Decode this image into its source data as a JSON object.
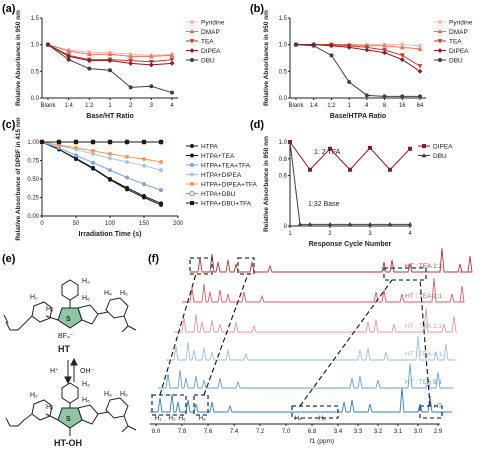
{
  "colors": {
    "pyridine": "#f4b8b0",
    "dmap": "#e8735f",
    "tea": "#c0392b",
    "dipea": "#8b1a2b",
    "dbu": "#404040",
    "htpa": "#1a1a1a",
    "blue1": "#7aa6d8",
    "blue2": "#a9c6e8",
    "orange": "#f29a60",
    "salmon": "#e86c5a",
    "nmr_blue": "#3a78c2",
    "nmr_red": "#b23a3a"
  },
  "chart_data": [
    {
      "id": "a",
      "panel_label": "(a)",
      "type": "line",
      "xlabel": "Base/HT Ratio",
      "ylabel": "Relative Absorbance in 950 nm",
      "categories": [
        "Blank",
        "1:4",
        "1:2",
        "1",
        "2",
        "3",
        "4"
      ],
      "ylim": [
        0,
        1.5
      ],
      "yticks": [
        "0.0",
        "0.5",
        "1.0",
        "1.5"
      ],
      "legend_position": "right",
      "series": [
        {
          "name": "Pyridine",
          "color_key": "pyridine",
          "marker": "circle",
          "values": [
            1.0,
            0.9,
            0.86,
            0.85,
            0.82,
            0.8,
            0.82
          ]
        },
        {
          "name": "DMAP",
          "color_key": "dmap",
          "marker": "triangle",
          "values": [
            1.0,
            0.88,
            0.82,
            0.82,
            0.78,
            0.78,
            0.8
          ]
        },
        {
          "name": "TEA",
          "color_key": "tea",
          "marker": "triangle-down",
          "values": [
            1.0,
            0.8,
            0.72,
            0.72,
            0.7,
            0.68,
            0.72
          ]
        },
        {
          "name": "DIPEA",
          "color_key": "dipea",
          "marker": "diamond",
          "values": [
            1.0,
            0.78,
            0.7,
            0.7,
            0.65,
            0.62,
            0.65
          ]
        },
        {
          "name": "DBU",
          "color_key": "dbu",
          "marker": "circle",
          "values": [
            1.0,
            0.72,
            0.55,
            0.52,
            0.2,
            0.22,
            0.1
          ]
        }
      ]
    },
    {
      "id": "b",
      "panel_label": "(b)",
      "type": "line",
      "xlabel": "Base/HTPA Ratio",
      "ylabel": "Relative Absorbance in 950 nm",
      "categories": [
        "Blank",
        "1:4",
        "1:2",
        "1",
        "4",
        "8",
        "16",
        "64"
      ],
      "ylim": [
        0,
        1.5
      ],
      "yticks": [
        "0.0",
        "0.5",
        "1.0",
        "1.5"
      ],
      "legend_position": "right",
      "series": [
        {
          "name": "Pyridine",
          "color_key": "pyridine",
          "marker": "circle",
          "values": [
            1.0,
            1.0,
            1.0,
            1.0,
            1.0,
            1.0,
            1.0,
            0.98
          ]
        },
        {
          "name": "DMAP",
          "color_key": "dmap",
          "marker": "triangle",
          "values": [
            1.0,
            1.0,
            1.0,
            1.0,
            0.98,
            0.98,
            0.95,
            0.92
          ]
        },
        {
          "name": "TEA",
          "color_key": "tea",
          "marker": "triangle-down",
          "values": [
            1.0,
            1.0,
            1.0,
            0.98,
            0.95,
            0.9,
            0.8,
            0.6
          ]
        },
        {
          "name": "DIPEA",
          "color_key": "dipea",
          "marker": "diamond",
          "values": [
            1.0,
            1.0,
            0.98,
            0.95,
            0.9,
            0.85,
            0.72,
            0.5
          ]
        },
        {
          "name": "DBU",
          "color_key": "dbu",
          "marker": "circle",
          "values": [
            1.0,
            0.98,
            0.8,
            0.3,
            0.05,
            0.03,
            0.03,
            0.03
          ]
        }
      ]
    },
    {
      "id": "c",
      "panel_label": "(c)",
      "type": "line",
      "xlabel": "Irradiation Time (s)",
      "ylabel": "Relative Absorbance of DPBF in 415 nm",
      "x": [
        0,
        25,
        50,
        75,
        100,
        125,
        150,
        175
      ],
      "xlim": [
        0,
        200
      ],
      "xticks": [
        "0",
        "50",
        "100",
        "150",
        "200"
      ],
      "ylim": [
        0,
        1.0
      ],
      "yticks": [
        "0.00",
        "0.25",
        "0.50",
        "0.75",
        "1.00"
      ],
      "legend_position": "right",
      "series": [
        {
          "name": "HTPA",
          "color_key": "htpa",
          "marker": "circle",
          "values": [
            1.0,
            0.9,
            0.78,
            0.65,
            0.5,
            0.38,
            0.27,
            0.17
          ]
        },
        {
          "name": "HTPA+TEA",
          "color_key": "htpa",
          "marker": "circle",
          "values": [
            1.0,
            0.9,
            0.77,
            0.64,
            0.49,
            0.36,
            0.25,
            0.15
          ]
        },
        {
          "name": "HTPA+TEA+TFA",
          "color_key": "blue1",
          "marker": "circle",
          "values": [
            1.0,
            0.92,
            0.82,
            0.72,
            0.62,
            0.52,
            0.43,
            0.35
          ]
        },
        {
          "name": "HTPA+DIPEA",
          "color_key": "blue2",
          "marker": "circle",
          "values": [
            1.0,
            0.95,
            0.9,
            0.84,
            0.78,
            0.73,
            0.68,
            0.62
          ]
        },
        {
          "name": "HTPA+DIPEA+TFA",
          "color_key": "orange",
          "marker": "circle",
          "values": [
            1.0,
            0.96,
            0.92,
            0.88,
            0.84,
            0.8,
            0.77,
            0.73
          ]
        },
        {
          "name": "HTPA+DBU",
          "color_key": "salmon",
          "marker": "circle-open",
          "values": [
            1.0,
            1.0,
            1.0,
            1.0,
            1.0,
            1.0,
            1.0,
            1.0
          ]
        },
        {
          "name": "HTPA+DBU+TFA",
          "color_key": "htpa",
          "marker": "square",
          "values": [
            1.0,
            1.0,
            1.0,
            1.0,
            1.0,
            1.0,
            1.0,
            1.0
          ]
        }
      ]
    },
    {
      "id": "d",
      "panel_label": "(d)",
      "type": "line",
      "xlabel": "Response Cycle Number",
      "ylabel": "Relative Absorbance in 950 nm",
      "xlim": [
        1,
        4
      ],
      "xticks": [
        "1",
        "2",
        "3",
        "4"
      ],
      "ylim": [
        0,
        1.0
      ],
      "yticks": [
        "0",
        "0.6",
        "0.8",
        "1.0"
      ],
      "annotations": [
        "1: 2 TFA",
        "1:32 Base"
      ],
      "legend_position": "right",
      "series": [
        {
          "name": "DIPEA",
          "color_key": "dipea",
          "marker": "square",
          "x": [
            1,
            1.5,
            2,
            2.5,
            3,
            3.5,
            4
          ],
          "values": [
            1.0,
            0.67,
            0.92,
            0.67,
            0.93,
            0.67,
            0.92
          ]
        },
        {
          "name": "DBU",
          "color_key": "dbu",
          "marker": "triangle",
          "x": [
            1,
            1.25,
            1.5,
            2,
            2.5,
            3,
            3.5,
            4
          ],
          "values": [
            1.0,
            0.02,
            0.02,
            0.02,
            0.02,
            0.02,
            0.02,
            0.02
          ]
        }
      ]
    }
  ],
  "panel_e": {
    "label": "(e)",
    "top_name": "HT",
    "bottom_name": "HT-OH",
    "counterion": "BF₄⁻",
    "sulfur": "S",
    "sulfur_plus": "S",
    "forward": "H⁺",
    "backward": "OH⁻",
    "h1": "H₁",
    "h2": "H₂",
    "h3": "H₃",
    "h4": "H₄",
    "h5": "H₅",
    "h6": "H₆"
  },
  "panel_f": {
    "label": "(f)",
    "xlabel": "f1 (ppm)",
    "xticks_left": [
      "8.0",
      "7.8",
      "7.6",
      "7.4",
      "7.2",
      "7.0",
      "6.8"
    ],
    "xticks_right": [
      "3.4",
      "3.3",
      "3.2",
      "3.1",
      "3.0",
      "2.9"
    ],
    "spectra": [
      {
        "label": "HT : TEA 1:2"
      },
      {
        "label": "HT : TEA 1:1"
      },
      {
        "label": "HT : TEA 2:1"
      },
      {
        "label": "HT : TEA 4:1"
      },
      {
        "label": "HT : TEA 8:1"
      },
      {
        "label": "HT"
      }
    ],
    "peak_labels": [
      "H₁",
      "H₂",
      "H₆",
      "H₃",
      "H₄",
      "H₅"
    ]
  }
}
